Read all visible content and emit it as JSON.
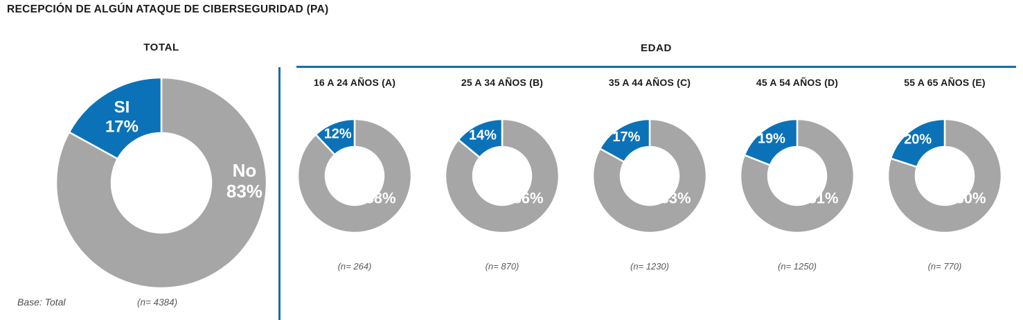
{
  "page_title": "RECEPCIÓN DE ALGÚN ATAQUE DE CIBERSEGURIDAD (PA)",
  "sections": {
    "total_heading": "TOTAL",
    "edad_heading": "EDAD",
    "base_note": "Base: Total"
  },
  "colors": {
    "si": "#0b72b8",
    "no": "#a6a6a6",
    "rule": "#1a6ca3",
    "slice_text": "#ffffff"
  },
  "chart_data": [
    {
      "type": "pie",
      "title": "TOTAL",
      "labels": [
        "SI",
        "No"
      ],
      "values": [
        17,
        83
      ],
      "unit": "%",
      "n": 4384,
      "n_text": "(n= 4384)"
    },
    {
      "type": "pie",
      "title": "16 A 24 AÑOS (A)",
      "labels": [
        "SI",
        "No"
      ],
      "values": [
        12,
        88
      ],
      "unit": "%",
      "n": 264,
      "n_text": "(n= 264)"
    },
    {
      "type": "pie",
      "title": "25 A 34 AÑOS (B)",
      "labels": [
        "SI",
        "No"
      ],
      "values": [
        14,
        86
      ],
      "unit": "%",
      "n": 870,
      "n_text": "(n= 870)"
    },
    {
      "type": "pie",
      "title": "35 A 44 AÑOS (C)",
      "labels": [
        "SI",
        "No"
      ],
      "values": [
        17,
        83
      ],
      "unit": "%",
      "n": 1230,
      "n_text": "(n= 1230)"
    },
    {
      "type": "pie",
      "title": "45 A 54 AÑOS (D)",
      "labels": [
        "SI",
        "No"
      ],
      "values": [
        19,
        81
      ],
      "unit": "%",
      "n": 1250,
      "n_text": "(n= 1250)"
    },
    {
      "type": "pie",
      "title": "55 A 65 AÑOS (E)",
      "labels": [
        "SI",
        "No"
      ],
      "values": [
        20,
        80
      ],
      "unit": "%",
      "n": 770,
      "n_text": "(n= 770)"
    }
  ]
}
